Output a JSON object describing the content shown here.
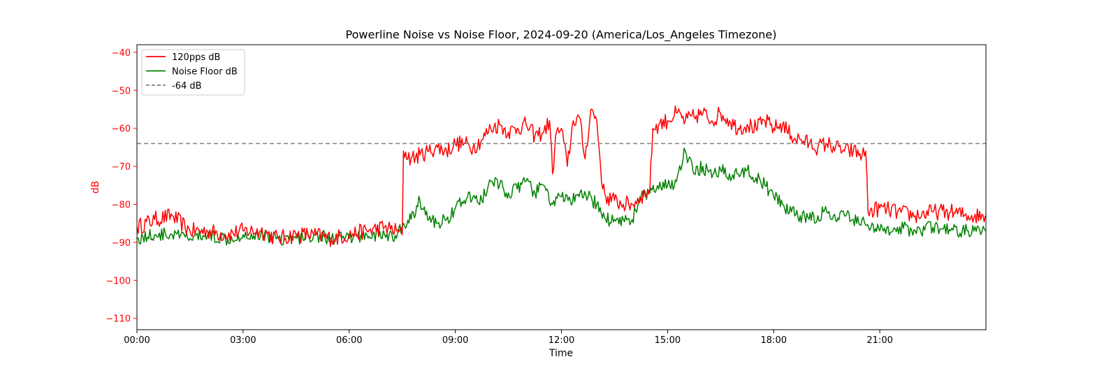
{
  "chart_data": {
    "type": "line",
    "title": "Powerline Noise vs Noise Floor, 2024-09-20 (America/Los_Angeles Timezone)",
    "xlabel": "Time",
    "ylabel": "dB",
    "xlim": [
      "00:00",
      "24:00"
    ],
    "ylim": [
      -113,
      -38
    ],
    "x_ticks": [
      "00:00",
      "03:00",
      "06:00",
      "09:00",
      "12:00",
      "15:00",
      "18:00",
      "21:00"
    ],
    "y_ticks": [
      -40,
      -50,
      -60,
      -70,
      -80,
      -90,
      -100,
      -110
    ],
    "legend_position": "upper-left",
    "grid": false,
    "reference_line": {
      "name": "-64 dB",
      "y": -64,
      "color": "#808080",
      "style": "dashed"
    },
    "series": [
      {
        "name": "120pps dB",
        "color": "#ff0000",
        "x": [
          "00:00",
          "00:30",
          "01:00",
          "01:30",
          "02:00",
          "02:30",
          "03:00",
          "03:30",
          "04:00",
          "04:30",
          "05:00",
          "05:30",
          "06:00",
          "06:30",
          "07:00",
          "07:20",
          "07:30",
          "07:32",
          "07:45",
          "08:00",
          "08:15",
          "08:30",
          "08:45",
          "09:00",
          "09:15",
          "09:30",
          "09:45",
          "10:00",
          "10:15",
          "10:30",
          "10:45",
          "11:00",
          "11:15",
          "11:30",
          "11:40",
          "11:45",
          "11:50",
          "12:00",
          "12:10",
          "12:20",
          "12:30",
          "12:40",
          "12:50",
          "13:00",
          "13:10",
          "13:15",
          "13:30",
          "13:45",
          "14:00",
          "14:15",
          "14:30",
          "14:35",
          "14:45",
          "15:00",
          "15:15",
          "15:30",
          "15:45",
          "16:00",
          "16:15",
          "16:30",
          "16:45",
          "17:00",
          "17:15",
          "17:30",
          "17:45",
          "18:00",
          "18:15",
          "18:30",
          "18:45",
          "19:00",
          "19:15",
          "19:30",
          "19:45",
          "20:00",
          "20:15",
          "20:30",
          "20:36",
          "20:40",
          "21:00",
          "21:30",
          "22:00",
          "22:30",
          "23:00",
          "23:30",
          "23:59"
        ],
        "y": [
          -86,
          -84,
          -83,
          -87,
          -87,
          -88,
          -87,
          -87,
          -89,
          -88,
          -88,
          -89,
          -88,
          -87,
          -86,
          -87,
          -88,
          -66,
          -68,
          -67,
          -66,
          -65,
          -66,
          -64,
          -64,
          -65,
          -63,
          -60,
          -59,
          -61,
          -60,
          -59,
          -62,
          -61,
          -58,
          -72,
          -62,
          -60,
          -70,
          -58,
          -57,
          -68,
          -55,
          -58,
          -76,
          -78,
          -79,
          -80,
          -80,
          -78,
          -76,
          -60,
          -59,
          -58,
          -56,
          -58,
          -57,
          -56,
          -58,
          -56,
          -58,
          -60,
          -59,
          -60,
          -58,
          -60,
          -59,
          -62,
          -63,
          -64,
          -65,
          -64,
          -65,
          -66,
          -66,
          -67,
          -66,
          -82,
          -81,
          -82,
          -83,
          -82,
          -82,
          -83,
          -83
        ]
      },
      {
        "name": "Noise Floor dB",
        "color": "#008000",
        "x": [
          "00:00",
          "00:30",
          "01:00",
          "01:30",
          "02:00",
          "02:30",
          "03:00",
          "03:30",
          "04:00",
          "04:30",
          "05:00",
          "05:30",
          "06:00",
          "06:30",
          "07:00",
          "07:20",
          "07:32",
          "07:45",
          "08:00",
          "08:15",
          "08:30",
          "08:45",
          "09:00",
          "09:15",
          "09:30",
          "09:45",
          "10:00",
          "10:15",
          "10:30",
          "10:45",
          "11:00",
          "11:15",
          "11:30",
          "11:45",
          "12:00",
          "12:15",
          "12:30",
          "12:45",
          "13:00",
          "13:15",
          "13:30",
          "13:45",
          "14:00",
          "14:15",
          "14:30",
          "14:45",
          "15:00",
          "15:15",
          "15:30",
          "15:45",
          "16:00",
          "16:15",
          "16:30",
          "16:45",
          "17:00",
          "17:15",
          "17:30",
          "17:45",
          "18:00",
          "18:15",
          "18:30",
          "18:45",
          "19:00",
          "19:15",
          "19:30",
          "19:45",
          "20:00",
          "20:15",
          "20:30",
          "20:45",
          "21:00",
          "21:30",
          "22:00",
          "22:30",
          "23:00",
          "23:30",
          "23:59"
        ],
        "y": [
          -89,
          -88,
          -88,
          -89,
          -88,
          -89,
          -88,
          -88,
          -89,
          -89,
          -88,
          -89,
          -89,
          -88,
          -88,
          -89,
          -85,
          -84,
          -79,
          -84,
          -85,
          -84,
          -81,
          -79,
          -78,
          -79,
          -74,
          -75,
          -77,
          -76,
          -74,
          -77,
          -75,
          -80,
          -78,
          -79,
          -78,
          -78,
          -80,
          -84,
          -84,
          -84,
          -84,
          -78,
          -77,
          -76,
          -75,
          -74,
          -66,
          -72,
          -70,
          -73,
          -71,
          -72,
          -72,
          -71,
          -73,
          -75,
          -78,
          -80,
          -82,
          -83,
          -84,
          -83,
          -82,
          -84,
          -83,
          -84,
          -84,
          -86,
          -87,
          -86,
          -87,
          -86,
          -87,
          -87,
          -87
        ]
      }
    ]
  }
}
